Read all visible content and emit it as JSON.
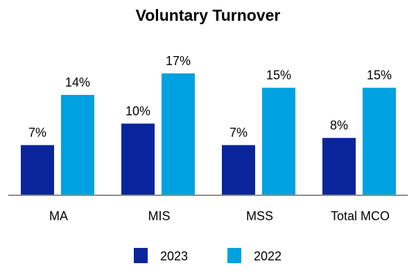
{
  "chart_data": {
    "type": "bar",
    "title": "Voluntary Turnover",
    "categories": [
      "MA",
      "MIS",
      "MSS",
      "Total MCO"
    ],
    "series": [
      {
        "name": "2023",
        "values": [
          7,
          10,
          7,
          8
        ],
        "labels": [
          "7%",
          "10%",
          "7%",
          "8%"
        ],
        "color": "#0A259C"
      },
      {
        "name": "2022",
        "values": [
          14,
          17,
          15,
          15
        ],
        "labels": [
          "14%",
          "17%",
          "15%",
          "15%"
        ],
        "color": "#00A1E0"
      }
    ],
    "ylim": [
      0,
      20
    ],
    "grid": false,
    "legend_position": "bottom",
    "axis_color": "#8C8C8C"
  }
}
